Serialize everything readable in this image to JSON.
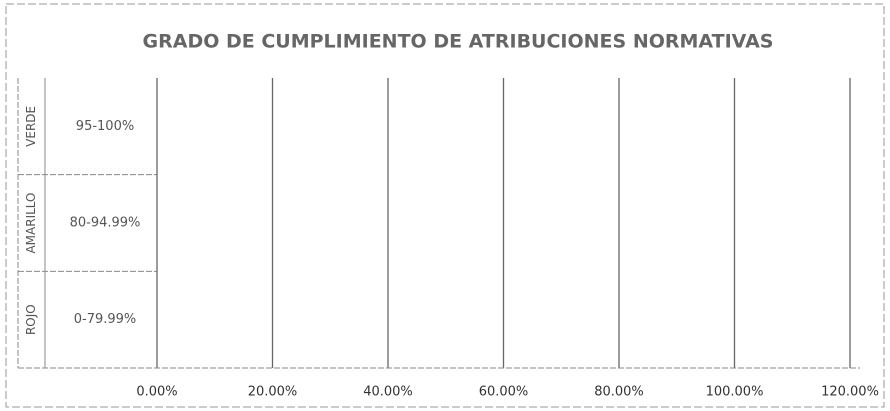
{
  "chart_data": {
    "type": "bar",
    "orientation": "horizontal",
    "title": "GRADO DE CUMPLIMIENTO DE ATRIBUCIONES NORMATIVAS",
    "groups": [
      "VERDE",
      "AMARILLO",
      "ROJO"
    ],
    "categories": [
      "95-100%",
      "80-94.99%",
      "0-79.99%"
    ],
    "xlim": [
      0,
      120
    ],
    "xticks": [
      {
        "value": 0,
        "label": "0.00%"
      },
      {
        "value": 20,
        "label": "20.00%"
      },
      {
        "value": 40,
        "label": "40.00%"
      },
      {
        "value": 60,
        "label": "60.00%"
      },
      {
        "value": 80,
        "label": "80.00%"
      },
      {
        "value": 100,
        "label": "100.00%"
      },
      {
        "value": 120,
        "label": "120.00%"
      }
    ],
    "grid": true
  }
}
